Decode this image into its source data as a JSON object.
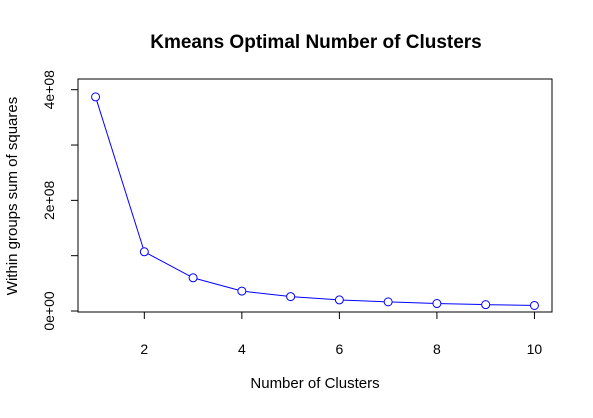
{
  "chart_data": {
    "type": "line",
    "title": "Kmeans Optimal Number of Clusters",
    "xlabel": "Number of Clusters",
    "ylabel": "Within groups sum of squares",
    "x": [
      1,
      2,
      3,
      4,
      5,
      6,
      7,
      8,
      9,
      10
    ],
    "values": [
      387000000,
      107000000,
      60000000,
      36000000,
      26000000,
      20000000,
      16500000,
      13500000,
      11500000,
      10000000
    ],
    "xlim": [
      0.64,
      10.36
    ],
    "ylim": [
      0,
      400000000
    ],
    "x_ticks": [
      2,
      4,
      6,
      8,
      10
    ],
    "x_tick_labels": [
      "2",
      "4",
      "6",
      "8",
      "10"
    ],
    "y_ticks": [
      0,
      100000000,
      200000000,
      300000000,
      400000000
    ],
    "y_tick_labels": [
      "0e+00",
      "",
      "2e+08",
      "",
      "4e+08"
    ],
    "marker": "open-circle",
    "line_color": "#0000ff",
    "grid": false,
    "legend": "none"
  }
}
